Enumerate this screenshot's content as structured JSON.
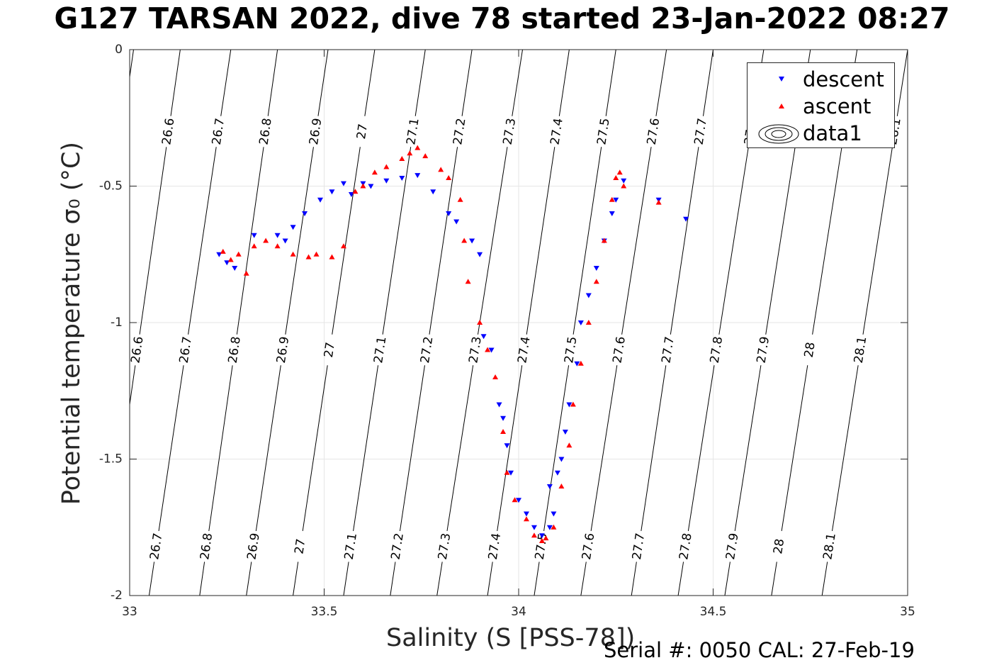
{
  "title": "G127 TARSAN 2022, dive 78 started 23-Jan-2022 08:27",
  "footer": "Serial #: 0050  CAL: 27-Feb-19",
  "chart_data": {
    "type": "scatter",
    "title": "G127 TARSAN 2022, dive 78 started 23-Jan-2022 08:27",
    "xlabel": "Salinity (S [PSS-78])",
    "ylabel": "Potential temperature σ₀ (°C)",
    "xlim": [
      33,
      35
    ],
    "ylim": [
      -2,
      0
    ],
    "xticks": [
      "33",
      "33.5",
      "34",
      "34.5",
      "35"
    ],
    "yticks": [
      "0",
      "-0.5",
      "-1",
      "-1.5",
      "-2"
    ],
    "grid": true,
    "legend_position": "top-right",
    "legend": [
      {
        "label": "descent",
        "color": "#0000ff",
        "marker": "triangle-down"
      },
      {
        "label": "ascent",
        "color": "#ff0000",
        "marker": "triangle-up"
      },
      {
        "label": "data1",
        "marker": "contour"
      }
    ],
    "isopycnals": {
      "levels": [
        26.5,
        26.6,
        26.7,
        26.8,
        26.9,
        27.0,
        27.1,
        27.2,
        27.3,
        27.4,
        27.5,
        27.6,
        27.7,
        27.8,
        27.9,
        28.0,
        28.1
      ],
      "labels": [
        "",
        "26.6",
        "26.7",
        "26.8",
        "26.9",
        "27",
        "27.1",
        "27.2",
        "27.3",
        "27.4",
        "27.5",
        "27.6",
        "27.7",
        "27.8",
        "27.9",
        "28",
        "28.1"
      ],
      "salinity_at_temp_0": [
        33.01,
        33.13,
        33.26,
        33.38,
        33.51,
        33.63,
        33.76,
        33.88,
        34.01,
        34.13,
        34.25,
        34.38,
        34.5,
        34.63,
        34.75,
        34.87,
        35.0
      ],
      "salinity_at_temp_-2": [
        32.81,
        32.93,
        33.05,
        33.18,
        33.3,
        33.42,
        33.55,
        33.67,
        33.79,
        33.92,
        34.04,
        34.16,
        34.29,
        34.41,
        34.53,
        34.65,
        34.78
      ]
    },
    "series": [
      {
        "name": "descent",
        "color": "#0000ff",
        "marker": "triangle-down",
        "x": [
          33.23,
          33.25,
          33.27,
          33.32,
          33.38,
          33.4,
          33.42,
          33.45,
          33.49,
          33.52,
          33.55,
          33.57,
          33.6,
          33.62,
          33.66,
          33.7,
          33.74,
          33.78,
          33.82,
          33.84,
          33.88,
          33.9,
          33.91,
          33.93,
          33.95,
          33.96,
          33.97,
          33.98,
          34.0,
          34.02,
          34.04,
          34.06,
          34.08,
          34.08,
          34.09,
          34.1,
          34.11,
          34.12,
          34.13,
          34.15,
          34.16,
          34.18,
          34.2,
          34.22,
          34.24,
          34.25,
          34.27,
          34.36,
          34.43
        ],
        "y": [
          -0.75,
          -0.78,
          -0.8,
          -0.68,
          -0.68,
          -0.7,
          -0.65,
          -0.6,
          -0.55,
          -0.52,
          -0.49,
          -0.53,
          -0.49,
          -0.5,
          -0.48,
          -0.47,
          -0.46,
          -0.52,
          -0.6,
          -0.63,
          -0.7,
          -0.75,
          -1.05,
          -1.1,
          -1.3,
          -1.35,
          -1.45,
          -1.55,
          -1.65,
          -1.7,
          -1.75,
          -1.78,
          -1.75,
          -1.6,
          -1.7,
          -1.55,
          -1.5,
          -1.4,
          -1.3,
          -1.15,
          -1.0,
          -0.9,
          -0.8,
          -0.7,
          -0.6,
          -0.55,
          -0.48,
          -0.55,
          -0.62
        ]
      },
      {
        "name": "ascent",
        "color": "#ff0000",
        "marker": "triangle-up",
        "x": [
          33.24,
          33.26,
          33.28,
          33.3,
          33.32,
          33.35,
          33.38,
          33.42,
          33.46,
          33.48,
          33.52,
          33.55,
          33.58,
          33.6,
          33.63,
          33.66,
          33.7,
          33.72,
          33.74,
          33.76,
          33.8,
          33.82,
          33.85,
          33.86,
          33.87,
          33.9,
          33.92,
          33.94,
          33.96,
          33.97,
          33.99,
          34.02,
          34.04,
          34.06,
          34.07,
          34.09,
          34.11,
          34.13,
          34.14,
          34.16,
          34.18,
          34.2,
          34.22,
          34.24,
          34.25,
          34.26,
          34.27,
          34.36
        ],
        "y": [
          -0.74,
          -0.77,
          -0.75,
          -0.82,
          -0.72,
          -0.7,
          -0.72,
          -0.75,
          -0.76,
          -0.75,
          -0.76,
          -0.72,
          -0.52,
          -0.5,
          -0.45,
          -0.43,
          -0.4,
          -0.38,
          -0.36,
          -0.39,
          -0.44,
          -0.47,
          -0.55,
          -0.7,
          -0.85,
          -1.0,
          -1.1,
          -1.2,
          -1.4,
          -1.55,
          -1.65,
          -1.72,
          -1.78,
          -1.8,
          -1.79,
          -1.75,
          -1.6,
          -1.45,
          -1.3,
          -1.15,
          -1.0,
          -0.85,
          -0.7,
          -0.55,
          -0.47,
          -0.45,
          -0.5,
          -0.56
        ]
      }
    ]
  }
}
